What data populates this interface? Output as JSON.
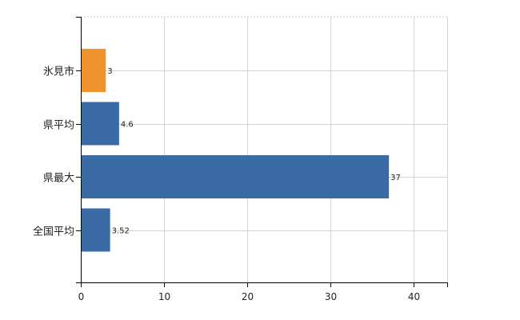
{
  "chart_data": {
    "type": "bar",
    "orientation": "horizontal",
    "categories": [
      "氷見市",
      "県平均",
      "県最大",
      "全国平均"
    ],
    "values": [
      3,
      4.6,
      37,
      3.52
    ],
    "value_labels": [
      "3",
      "4.6",
      "37",
      "3.52"
    ],
    "colors": [
      "#f0922e",
      "#3a6ba5",
      "#3a6ba5",
      "#3a6ba5"
    ],
    "xlim": [
      0,
      44
    ],
    "xticks": [
      0,
      10,
      20,
      30,
      40
    ],
    "xtick_labels": [
      "0",
      "10",
      "20",
      "30",
      "40"
    ],
    "grid": true,
    "title": "",
    "xlabel": "",
    "ylabel": ""
  }
}
